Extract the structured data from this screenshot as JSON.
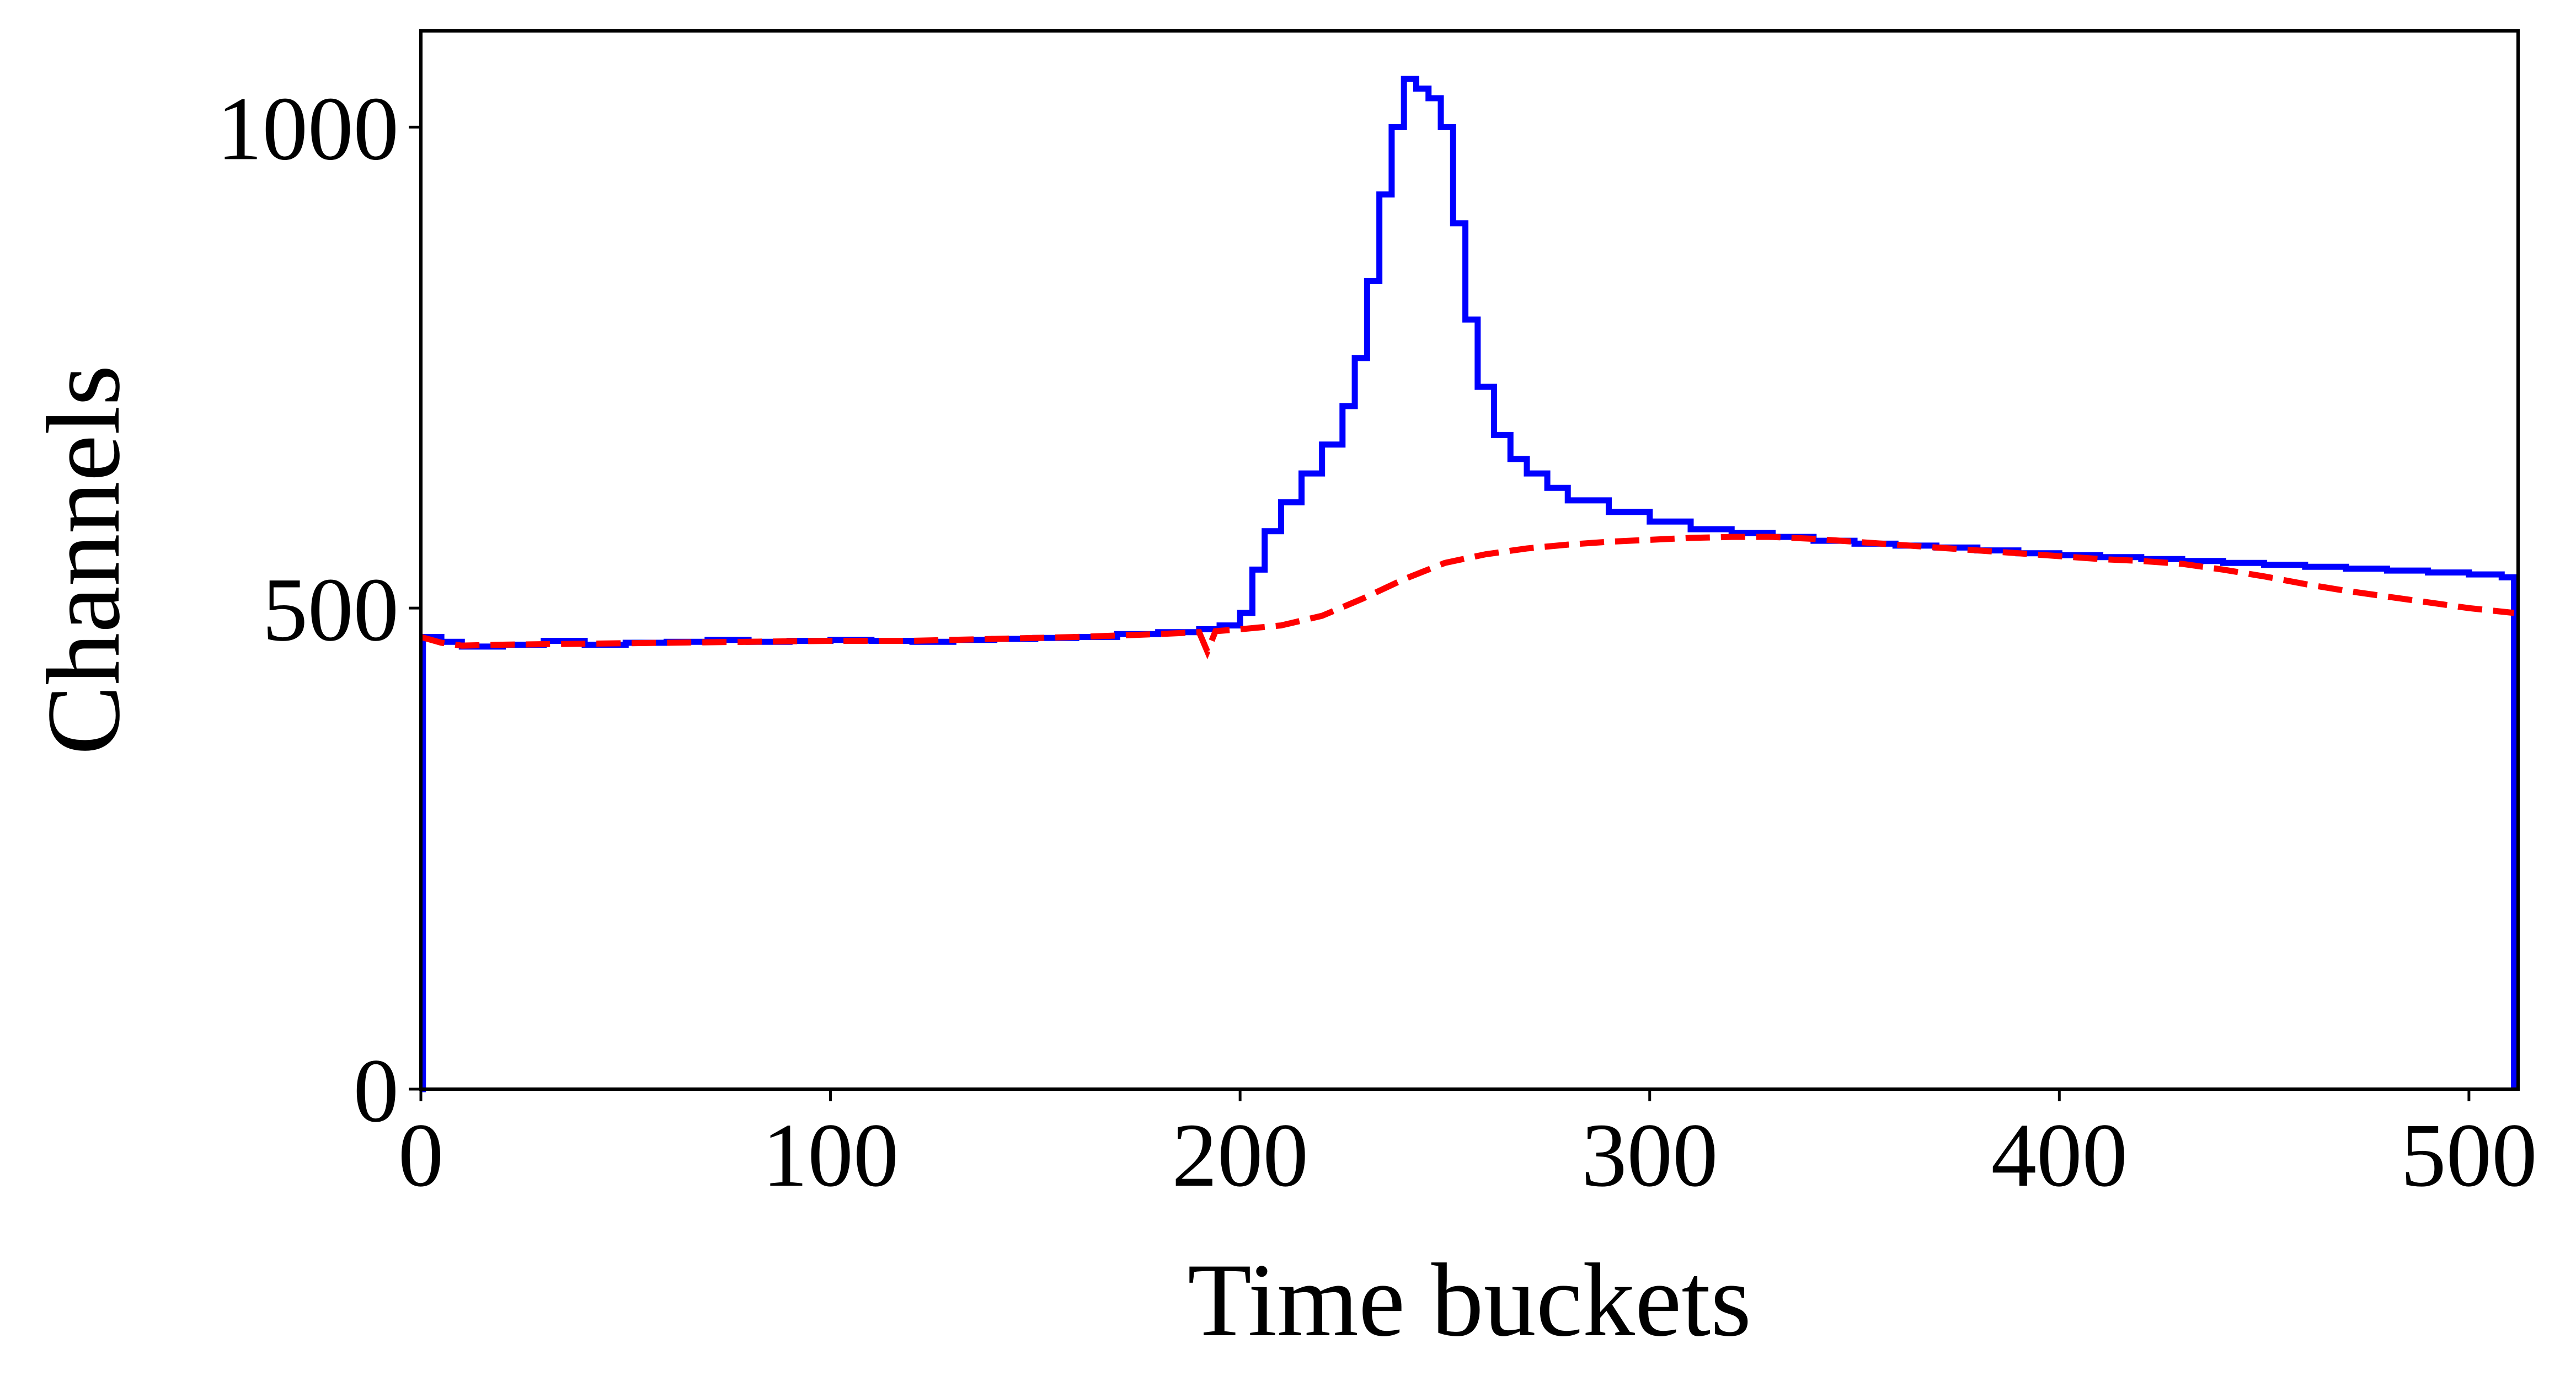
{
  "chart_data": {
    "type": "line",
    "title": "",
    "xlabel": "Time buckets",
    "ylabel": "Channels",
    "xlim": [
      0,
      512
    ],
    "ylim": [
      0,
      1100
    ],
    "x_ticks": [
      0,
      100,
      200,
      300,
      400,
      500
    ],
    "y_ticks": [
      0,
      500,
      1000
    ],
    "grid": false,
    "legend": "none",
    "series": [
      {
        "style": "step",
        "color": "#0000ff",
        "points": [
          [
            0,
            0
          ],
          [
            0.5,
            470
          ],
          [
            5,
            465
          ],
          [
            10,
            460
          ],
          [
            20,
            462
          ],
          [
            30,
            466
          ],
          [
            40,
            462
          ],
          [
            50,
            464
          ],
          [
            60,
            465
          ],
          [
            70,
            467
          ],
          [
            80,
            465
          ],
          [
            90,
            466
          ],
          [
            100,
            467
          ],
          [
            110,
            466
          ],
          [
            120,
            465
          ],
          [
            130,
            467
          ],
          [
            140,
            468
          ],
          [
            150,
            469
          ],
          [
            160,
            470
          ],
          [
            170,
            473
          ],
          [
            180,
            475
          ],
          [
            190,
            478
          ],
          [
            195,
            482
          ],
          [
            200,
            495
          ],
          [
            203,
            540
          ],
          [
            206,
            580
          ],
          [
            210,
            610
          ],
          [
            215,
            640
          ],
          [
            220,
            670
          ],
          [
            225,
            710
          ],
          [
            228,
            760
          ],
          [
            231,
            840
          ],
          [
            234,
            930
          ],
          [
            237,
            1000
          ],
          [
            240,
            1050
          ],
          [
            243,
            1040
          ],
          [
            246,
            1030
          ],
          [
            249,
            1000
          ],
          [
            252,
            900
          ],
          [
            255,
            800
          ],
          [
            258,
            730
          ],
          [
            262,
            680
          ],
          [
            266,
            655
          ],
          [
            270,
            640
          ],
          [
            275,
            625
          ],
          [
            280,
            612
          ],
          [
            290,
            600
          ],
          [
            300,
            590
          ],
          [
            310,
            582
          ],
          [
            320,
            578
          ],
          [
            330,
            574
          ],
          [
            340,
            570
          ],
          [
            350,
            567
          ],
          [
            360,
            565
          ],
          [
            370,
            563
          ],
          [
            380,
            560
          ],
          [
            390,
            557
          ],
          [
            400,
            555
          ],
          [
            410,
            553
          ],
          [
            420,
            551
          ],
          [
            430,
            549
          ],
          [
            440,
            547
          ],
          [
            450,
            545
          ],
          [
            460,
            543
          ],
          [
            470,
            541
          ],
          [
            480,
            539
          ],
          [
            490,
            537
          ],
          [
            500,
            535
          ],
          [
            508,
            532
          ],
          [
            511,
            0
          ]
        ]
      },
      {
        "style": "dashed",
        "color": "#ff0000",
        "points": [
          [
            0,
            470
          ],
          [
            5,
            464
          ],
          [
            10,
            461
          ],
          [
            20,
            462
          ],
          [
            40,
            463
          ],
          [
            60,
            464
          ],
          [
            80,
            465
          ],
          [
            100,
            466
          ],
          [
            120,
            466
          ],
          [
            140,
            468
          ],
          [
            160,
            470
          ],
          [
            180,
            473
          ],
          [
            190,
            475
          ],
          [
            192,
            455
          ],
          [
            194,
            476
          ],
          [
            200,
            478
          ],
          [
            210,
            482
          ],
          [
            220,
            492
          ],
          [
            230,
            510
          ],
          [
            240,
            530
          ],
          [
            250,
            547
          ],
          [
            260,
            556
          ],
          [
            270,
            562
          ],
          [
            280,
            566
          ],
          [
            290,
            569
          ],
          [
            300,
            571
          ],
          [
            310,
            573
          ],
          [
            320,
            574
          ],
          [
            330,
            574
          ],
          [
            340,
            572
          ],
          [
            350,
            569
          ],
          [
            360,
            566
          ],
          [
            370,
            563
          ],
          [
            380,
            560
          ],
          [
            390,
            557
          ],
          [
            400,
            554
          ],
          [
            410,
            551
          ],
          [
            420,
            549
          ],
          [
            430,
            546
          ],
          [
            440,
            540
          ],
          [
            450,
            533
          ],
          [
            460,
            525
          ],
          [
            470,
            518
          ],
          [
            480,
            512
          ],
          [
            490,
            506
          ],
          [
            500,
            500
          ],
          [
            511,
            495
          ]
        ]
      }
    ]
  }
}
